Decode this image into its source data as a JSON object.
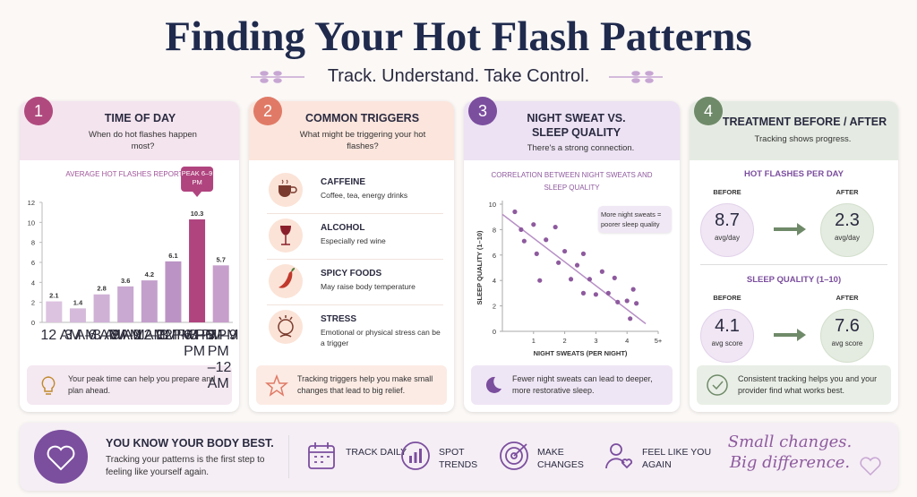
{
  "header": {
    "title": "Finding Your Hot Flash Patterns",
    "subtitle": "Track. Understand. Take Control."
  },
  "panels": [
    {
      "number": "1",
      "title": "TIME OF DAY",
      "question": "When do hot flashes happen most?",
      "tip": "Your peak time can help you prepare and plan ahead."
    },
    {
      "number": "2",
      "title": "COMMON TRIGGERS",
      "question": "What might be triggering your hot flashes?",
      "triggers": [
        {
          "name": "CAFFEINE",
          "desc": "Coffee, tea, energy drinks"
        },
        {
          "name": "ALCOHOL",
          "desc": "Especially red wine"
        },
        {
          "name": "SPICY FOODS",
          "desc": "May raise body temperature"
        },
        {
          "name": "STRESS",
          "desc": "Emotional or physical stress can be a trigger"
        }
      ],
      "tip": "Tracking triggers help you make small changes that lead to big relief."
    },
    {
      "number": "3",
      "title": "NIGHT SWEAT VS. SLEEP QUALITY",
      "question": "There's a strong connection.",
      "tip": "Fewer night sweats can lead to deeper, more restorative sleep."
    },
    {
      "number": "4",
      "title": "TREATMENT BEFORE / AFTER",
      "question": "Tracking shows progress.",
      "sections": [
        {
          "title": "HOT FLASHES PER DAY",
          "before_label": "BEFORE",
          "after_label": "AFTER",
          "before": 8.7,
          "before_unit": "avg/day",
          "after": 2.3,
          "after_unit": "avg/day"
        },
        {
          "title": "SLEEP QUALITY (1–10)",
          "before_label": "BEFORE",
          "after_label": "AFTER",
          "before": 4.1,
          "before_unit": "avg score",
          "after": 7.6,
          "after_unit": "avg score"
        }
      ],
      "tip": "Consistent tracking helps you and your provider find what works best."
    }
  ],
  "chart_data": [
    {
      "type": "bar",
      "title": "AVERAGE HOT FLASHES REPORTED",
      "categories": [
        "12 AM –3 AM",
        "3 AM –6 AM",
        "6 AM –9 AM",
        "9 AM –12 PM",
        "12 PM –3 PM",
        "3 PM –6 PM",
        "6 PM –9 PM",
        "9 PM –12 AM"
      ],
      "values": [
        2.1,
        1.4,
        2.8,
        3.6,
        4.2,
        6.1,
        10.3,
        5.7
      ],
      "colors": [
        "#dcc3e0",
        "#d5badb",
        "#cfb1d6",
        "#c9a8d1",
        "#c3a0cc",
        "#bb94c5",
        "#b0447f",
        "#c79fcb"
      ],
      "ylim": [
        0,
        12
      ],
      "yticks": [
        0,
        2,
        4,
        6,
        8,
        10,
        12
      ],
      "annotation": "PEAK 6–9 PM"
    },
    {
      "type": "scatter",
      "title": "CORRELATION BETWEEN NIGHT SWEATS AND SLEEP QUALITY",
      "x_label": "NIGHT SWEATS (PER NIGHT)",
      "y_label": "SLEEP QUALITY (1–10)",
      "x": [
        0.4,
        0.6,
        0.7,
        1.0,
        1.1,
        1.2,
        1.4,
        1.7,
        1.8,
        2.0,
        2.2,
        2.4,
        2.6,
        2.6,
        2.8,
        3.0,
        3.2,
        3.4,
        3.6,
        3.7,
        4.0,
        4.1,
        4.2,
        4.3
      ],
      "y": [
        9.4,
        8.0,
        7.1,
        8.4,
        6.1,
        4.0,
        7.2,
        8.2,
        5.4,
        6.3,
        4.1,
        5.2,
        6.1,
        3.0,
        4.1,
        2.9,
        4.7,
        3.0,
        4.2,
        2.3,
        2.4,
        1.0,
        3.3,
        2.2
      ],
      "color": "#8e5a9e",
      "xlim": [
        0,
        5
      ],
      "ylim": [
        0,
        10
      ],
      "xticks": [
        1,
        2,
        3,
        4,
        {
          "value": 5,
          "label": "5+"
        }
      ],
      "yticks": [
        0,
        2,
        4,
        6,
        8,
        10
      ],
      "trend": {
        "x": [
          0,
          4.6
        ],
        "y": [
          9.2,
          0.6
        ]
      },
      "annotation": "More night sweats = poorer sleep quality"
    }
  ],
  "footer": {
    "title": "YOU KNOW YOUR BODY BEST.",
    "text": "Tracking your patterns is the first step to feeling like yourself again.",
    "actions": [
      "TRACK DAILY",
      "SPOT TRENDS",
      "MAKE CHANGES",
      "FEEL LIKE YOU AGAIN"
    ],
    "slogan": "Small changes. Big difference."
  }
}
